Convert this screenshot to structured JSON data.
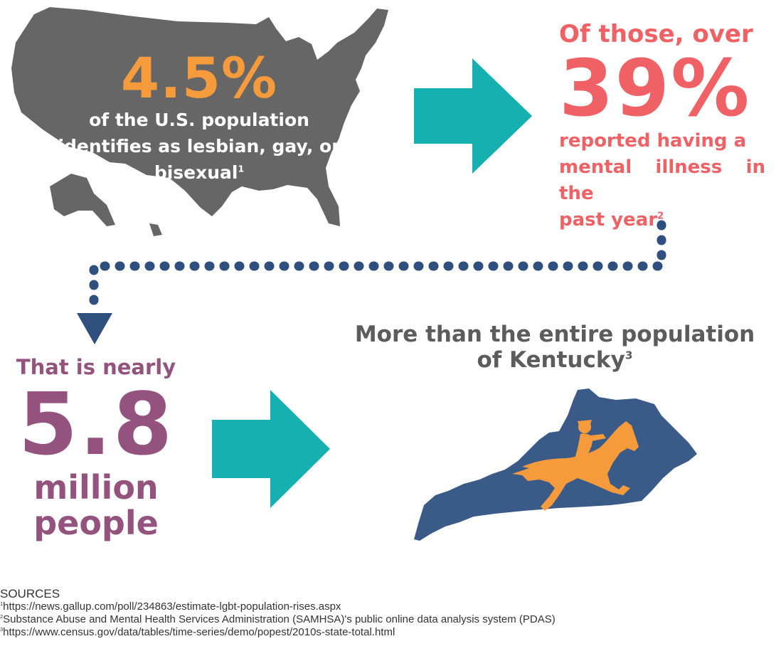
{
  "colors": {
    "map_gray": "#666666",
    "orange": "#f59b3c",
    "teal": "#17b0b0",
    "coral": "#f06165",
    "navy": "#2f4f7f",
    "kentucky_blue": "#3a5a87",
    "plum": "#94537e",
    "title_gray": "#5c5c5c"
  },
  "us_panel": {
    "percent": "4.5%",
    "line1": "of the U.S. population",
    "line2": "identifies as lesbian, gay, or",
    "line3": "bisexual",
    "footnote": "1"
  },
  "mental_health_panel": {
    "lead": "Of those, over",
    "percent": "39%",
    "line1": "reported having a",
    "line2": "mental illness in the",
    "line3": "past year",
    "footnote": "2"
  },
  "people_panel": {
    "lead": "That is nearly",
    "number": "5.8",
    "unit1": "million",
    "unit2": "people"
  },
  "kentucky_panel": {
    "line1": "More than the entire population",
    "line2": "of Kentucky",
    "footnote": "3"
  },
  "icons": [
    "usa-map-icon",
    "right-arrow-icon",
    "dotted-connector-icon",
    "down-arrow-icon",
    "kentucky-map-icon",
    "horse-jockey-icon"
  ],
  "sources": {
    "heading": "SOURCES",
    "items": [
      {
        "num": "1",
        "text": "https://news.gallup.com/poll/234863/estimate-lgbt-population-rises.aspx"
      },
      {
        "num": "2",
        "text": "Substance Abuse and Mental Health Services Administration (SAMHSA)'s public online data analysis system (PDAS)"
      },
      {
        "num": "3",
        "text": "https://www.census.gov/data/tables/time-series/demo/popest/2010s-state-total.html"
      }
    ]
  }
}
